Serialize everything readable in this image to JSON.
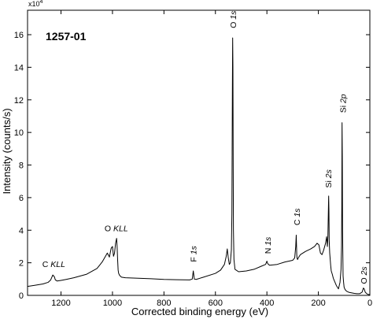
{
  "chart_data": {
    "type": "line",
    "title": "1257-01",
    "xlabel": "Corrected binding energy (eV)",
    "ylabel": "Intensity (counts/s)",
    "y_multiplier_base": "x10",
    "y_multiplier_exp": "4",
    "x_reversed": true,
    "xlim": [
      1330,
      0
    ],
    "ylim": [
      0,
      17.5
    ],
    "x_ticks": [
      1200,
      1000,
      800,
      600,
      400,
      200,
      0
    ],
    "y_ticks": [
      0,
      2,
      4,
      6,
      8,
      10,
      12,
      14,
      16
    ],
    "grid": false,
    "series": [
      {
        "x": [
          1330,
          1300,
          1270,
          1250,
          1240,
          1232,
          1226,
          1222,
          1215,
          1200,
          1180,
          1150,
          1100,
          1060,
          1040,
          1020,
          1012,
          1005,
          1000,
          996,
          992,
          988,
          984,
          982,
          980,
          978,
          976,
          972,
          965,
          950,
          900,
          850,
          800,
          750,
          700,
          690,
          686,
          682,
          675,
          650,
          600,
          580,
          565,
          558,
          554,
          550,
          546,
          542,
          538,
          536,
          535,
          534,
          533,
          532,
          531,
          530,
          528,
          524,
          510,
          480,
          450,
          420,
          405,
          400,
          397,
          390,
          360,
          330,
          300,
          292,
          288,
          286,
          285,
          284,
          283,
          281,
          278,
          270,
          250,
          230,
          215,
          205,
          198,
          192,
          186,
          180,
          172,
          168,
          165,
          163,
          161,
          160,
          159,
          158,
          156,
          154,
          152,
          150,
          146,
          142,
          130,
          122,
          116,
          112,
          110,
          109,
          108,
          107,
          106,
          104,
          102,
          100,
          96,
          90,
          80,
          70,
          60,
          50,
          40,
          35,
          30,
          27,
          25,
          22,
          18,
          12,
          5,
          0
        ],
        "y": [
          0.55,
          0.62,
          0.7,
          0.8,
          0.95,
          1.25,
          1.15,
          0.95,
          0.88,
          0.92,
          0.98,
          1.08,
          1.3,
          1.65,
          2.05,
          2.6,
          2.35,
          2.9,
          3.0,
          2.4,
          2.6,
          3.2,
          3.5,
          3.0,
          2.2,
          1.55,
          1.35,
          1.22,
          1.12,
          1.08,
          1.05,
          1.02,
          0.98,
          0.96,
          0.95,
          1.0,
          1.5,
          1.0,
          0.98,
          1.1,
          1.35,
          1.55,
          1.9,
          2.4,
          2.85,
          2.3,
          1.9,
          2.0,
          2.8,
          5.0,
          9.0,
          13.0,
          15.8,
          14.0,
          8.0,
          4.0,
          2.2,
          1.6,
          1.45,
          1.5,
          1.6,
          1.8,
          1.9,
          2.1,
          1.95,
          1.85,
          1.9,
          2.05,
          2.15,
          2.3,
          3.0,
          3.7,
          3.1,
          2.5,
          2.3,
          2.2,
          2.3,
          2.5,
          2.7,
          2.85,
          3.0,
          3.2,
          3.1,
          2.6,
          2.5,
          2.75,
          3.2,
          3.6,
          3.0,
          3.6,
          5.3,
          6.1,
          5.2,
          3.4,
          2.6,
          2.2,
          1.8,
          1.5,
          1.3,
          1.05,
          0.6,
          0.4,
          0.8,
          1.6,
          3.0,
          5.5,
          10.6,
          8.5,
          4.0,
          1.2,
          0.8,
          0.5,
          0.35,
          0.25,
          0.18,
          0.15,
          0.12,
          0.1,
          0.1,
          0.15,
          0.2,
          0.35,
          0.45,
          0.4,
          0.2,
          0.1,
          0.05,
          0.05
        ]
      }
    ],
    "annotations": [
      {
        "text": "O 1s",
        "x": 532,
        "y": 16.4
      },
      {
        "text": "Si 2s",
        "x": 162,
        "y": 6.6
      },
      {
        "text": "Si 2p",
        "x": 106,
        "y": 11.2
      },
      {
        "text": "C 1s",
        "x": 285,
        "y": 4.3
      },
      {
        "text": "N 1s",
        "x": 398,
        "y": 2.55
      },
      {
        "text": "F 1s",
        "x": 686,
        "y": 2.05
      },
      {
        "text": "O 2s",
        "x": 25,
        "y": 0.7
      },
      {
        "text": "O KLL",
        "x": 985,
        "y": 3.95
      },
      {
        "text": "C KLL",
        "x": 1228,
        "y": 1.75
      }
    ]
  }
}
